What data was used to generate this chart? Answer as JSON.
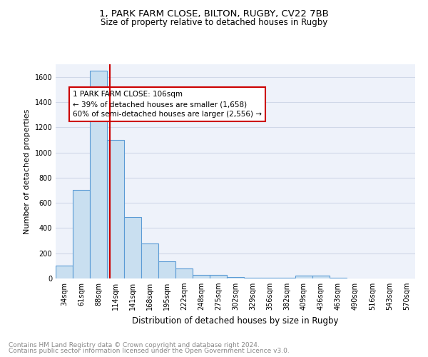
{
  "title": "1, PARK FARM CLOSE, BILTON, RUGBY, CV22 7BB",
  "subtitle": "Size of property relative to detached houses in Rugby",
  "xlabel": "Distribution of detached houses by size in Rugby",
  "ylabel": "Number of detached properties",
  "bar_labels": [
    "34sqm",
    "61sqm",
    "88sqm",
    "114sqm",
    "141sqm",
    "168sqm",
    "195sqm",
    "222sqm",
    "248sqm",
    "275sqm",
    "302sqm",
    "329sqm",
    "356sqm",
    "382sqm",
    "409sqm",
    "436sqm",
    "463sqm",
    "490sqm",
    "516sqm",
    "543sqm",
    "570sqm"
  ],
  "bar_values": [
    100,
    700,
    1650,
    1100,
    490,
    280,
    138,
    78,
    30,
    30,
    10,
    5,
    5,
    3,
    20,
    20,
    3,
    0,
    0,
    0,
    0
  ],
  "bar_color": "#c9dff0",
  "bar_edge_color": "#5b9bd5",
  "property_line_x": 2.67,
  "property_line_color": "#cc0000",
  "annotation_text": "1 PARK FARM CLOSE: 106sqm\n← 39% of detached houses are smaller (1,658)\n60% of semi-detached houses are larger (2,556) →",
  "annotation_box_color": "#ffffff",
  "annotation_box_edge_color": "#cc0000",
  "ylim": [
    0,
    1700
  ],
  "yticks": [
    0,
    200,
    400,
    600,
    800,
    1000,
    1200,
    1400,
    1600
  ],
  "grid_color": "#d0d8e8",
  "background_color": "#eef2fa",
  "footer_line1": "Contains HM Land Registry data © Crown copyright and database right 2024.",
  "footer_line2": "Contains public sector information licensed under the Open Government Licence v3.0.",
  "title_fontsize": 9.5,
  "subtitle_fontsize": 8.5,
  "annotation_fontsize": 7.5,
  "ylabel_fontsize": 8,
  "xlabel_fontsize": 8.5,
  "footer_fontsize": 6.5,
  "tick_fontsize": 7
}
